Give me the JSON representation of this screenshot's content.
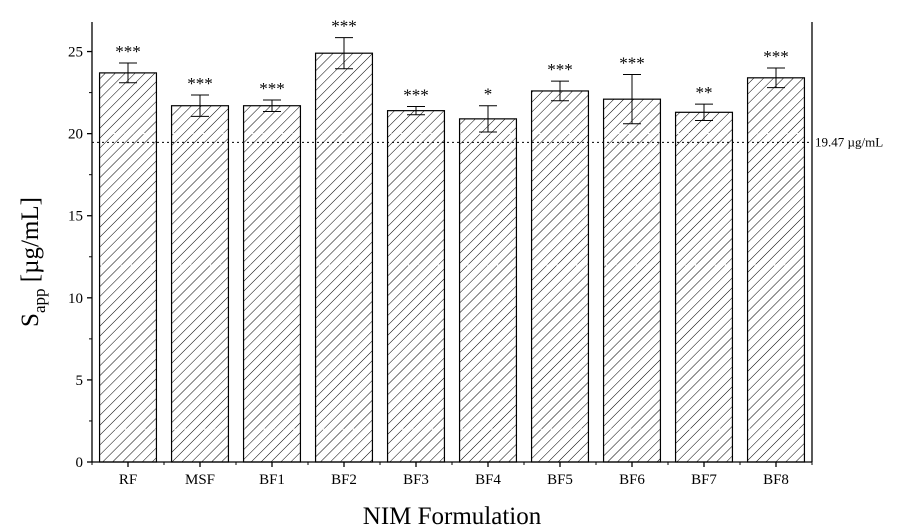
{
  "chart_data": {
    "type": "bar",
    "categories": [
      "RF",
      "MSF",
      "BF1",
      "BF2",
      "BF3",
      "BF4",
      "BF5",
      "BF6",
      "BF7",
      "BF8"
    ],
    "values": [
      23.7,
      21.7,
      21.7,
      24.9,
      21.4,
      20.9,
      22.6,
      22.1,
      21.3,
      23.4
    ],
    "errors": [
      0.6,
      0.65,
      0.35,
      0.95,
      0.25,
      0.8,
      0.6,
      1.5,
      0.5,
      0.6
    ],
    "significance": [
      "***",
      "***",
      "***",
      "***",
      "***",
      "*",
      "***",
      "***",
      "**",
      "***"
    ],
    "xlabel": "NIM Formulation",
    "ylabel": {
      "main": "S",
      "sub": "app",
      "unit": " [µg/mL]"
    },
    "ylim": [
      0,
      26.8
    ],
    "yticks": [
      0,
      5,
      10,
      15,
      20,
      25
    ],
    "reference_line": {
      "value": 19.47,
      "label": "19.47 µg/mL",
      "style": "dotted"
    },
    "grid": false,
    "bar_fill": "diagonal-hatch",
    "colors": {
      "bar_edge": "#000000",
      "hatch": "#000000",
      "background": "#ffffff",
      "axis": "#000000",
      "inner_dash": "#ffffff"
    }
  }
}
